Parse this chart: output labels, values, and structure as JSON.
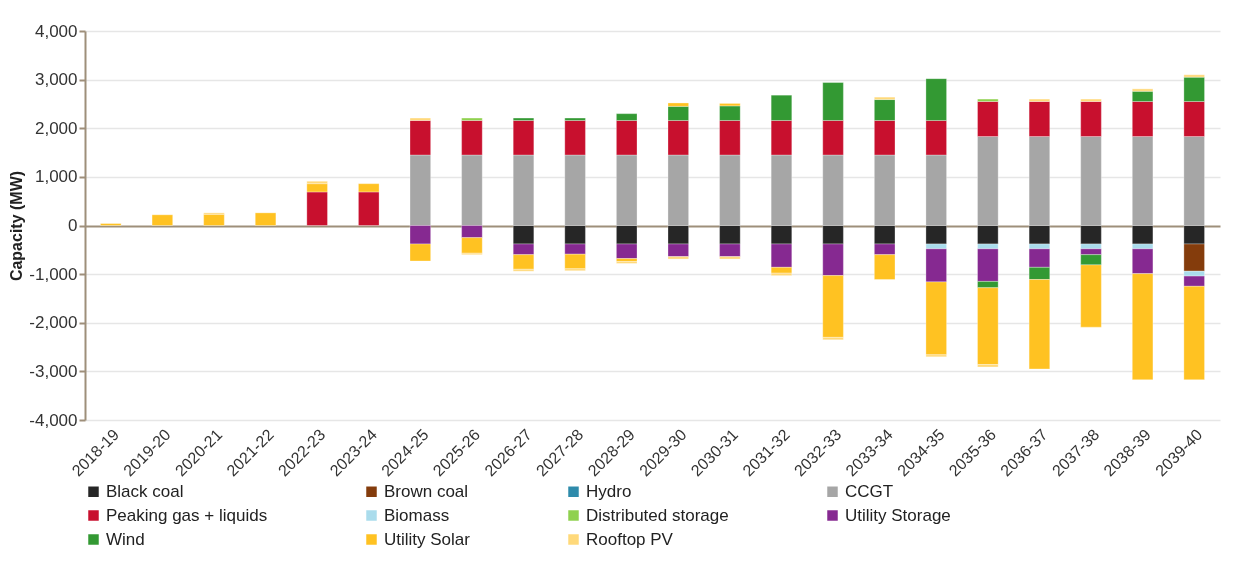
{
  "chart_data": {
    "type": "bar",
    "stacked": true,
    "ylabel": "Capacity (MW)",
    "categories": [
      "2018-19",
      "2019-20",
      "2020-21",
      "2021-22",
      "2022-23",
      "2023-24",
      "2024-25",
      "2025-26",
      "2026-27",
      "2027-28",
      "2028-29",
      "2029-30",
      "2030-31",
      "2031-32",
      "2032-33",
      "2033-34",
      "2034-35",
      "2035-36",
      "2036-37",
      "2037-38",
      "2038-39",
      "2039-40"
    ],
    "series": [
      {
        "name": "Black coal",
        "color": "#262626",
        "values": [
          null,
          null,
          null,
          null,
          null,
          null,
          null,
          null,
          -380,
          -380,
          -380,
          -380,
          -380,
          -380,
          -380,
          -380,
          -380,
          -380,
          -380,
          -380,
          -380,
          -380
        ]
      },
      {
        "name": "Brown coal",
        "color": "#843c0c",
        "values": [
          null,
          null,
          null,
          null,
          null,
          null,
          null,
          null,
          null,
          null,
          null,
          null,
          null,
          null,
          null,
          null,
          null,
          null,
          null,
          null,
          null,
          -560
        ]
      },
      {
        "name": "Hydro",
        "color": "#2e8bab",
        "values": [
          null,
          null,
          null,
          null,
          null,
          null,
          null,
          null,
          null,
          null,
          null,
          null,
          null,
          null,
          null,
          null,
          null,
          null,
          null,
          null,
          null,
          null
        ]
      },
      {
        "name": "CCGT",
        "color": "#a6a6a6",
        "values": [
          null,
          null,
          null,
          null,
          null,
          null,
          1450,
          1450,
          1450,
          1450,
          1450,
          1450,
          1450,
          1450,
          1450,
          1450,
          1450,
          1830,
          1830,
          1830,
          1830,
          1830
        ]
      },
      {
        "name": "Peaking gas + liquids",
        "color": "#c8102e",
        "values": [
          null,
          null,
          null,
          null,
          690,
          690,
          710,
          710,
          710,
          710,
          710,
          710,
          710,
          710,
          710,
          710,
          710,
          720,
          720,
          720,
          720,
          720
        ]
      },
      {
        "name": "Biomass",
        "color": "#aadcec",
        "values": [
          null,
          null,
          null,
          null,
          null,
          null,
          null,
          null,
          null,
          null,
          null,
          null,
          null,
          null,
          null,
          null,
          -100,
          -100,
          -100,
          -100,
          -100,
          -100
        ]
      },
      {
        "name": "Distributed storage",
        "color": "#8fd14f",
        "values": [
          null,
          null,
          null,
          null,
          null,
          null,
          null,
          50,
          null,
          null,
          null,
          null,
          null,
          null,
          null,
          null,
          null,
          50,
          null,
          null,
          null,
          null
        ]
      },
      {
        "name": "Utility Storage",
        "color": "#862991",
        "values": [
          null,
          null,
          null,
          null,
          null,
          null,
          -380,
          -250,
          -220,
          -210,
          -300,
          -260,
          -260,
          -480,
          -650,
          -220,
          -680,
          -670,
          -380,
          -120,
          -510,
          -210
        ]
      },
      {
        "name": "Wind",
        "color": "#339933",
        "values": [
          null,
          null,
          null,
          null,
          null,
          null,
          null,
          null,
          50,
          50,
          140,
          290,
          300,
          520,
          780,
          430,
          860,
          -130,
          -250,
          -210,
          210,
          500
        ]
      },
      {
        "name": "Utility Solar",
        "color": "#ffc222",
        "values": [
          40,
          220,
          230,
          260,
          170,
          170,
          -350,
          -320,
          -300,
          -300,
          -60,
          70,
          50,
          -120,
          -1270,
          -510,
          -1500,
          -1580,
          -1840,
          -1280,
          -2180,
          -1920
        ]
      },
      {
        "name": "Rooftop PV",
        "color": "#ffd97a",
        "values": [
          null,
          null,
          30,
          null,
          50,
          null,
          50,
          -30,
          -40,
          -40,
          -40,
          -50,
          -50,
          -50,
          -50,
          50,
          -40,
          -50,
          50,
          50,
          50,
          50
        ]
      }
    ],
    "ylim": [
      -4000,
      4000
    ],
    "yticks": [
      {
        "value": -4000,
        "label": "-4,000"
      },
      {
        "value": -3000,
        "label": "-3,000"
      },
      {
        "value": -2000,
        "label": "-2,000"
      },
      {
        "value": -1000,
        "label": "-1,000"
      },
      0,
      {
        "value": 1000,
        "label": "1,000"
      },
      {
        "value": 2000,
        "label": "2,000"
      },
      {
        "value": 3000,
        "label": "3,000"
      },
      {
        "value": 4000,
        "label": "4,000"
      }
    ],
    "grid": "y",
    "legend": "bottom"
  }
}
